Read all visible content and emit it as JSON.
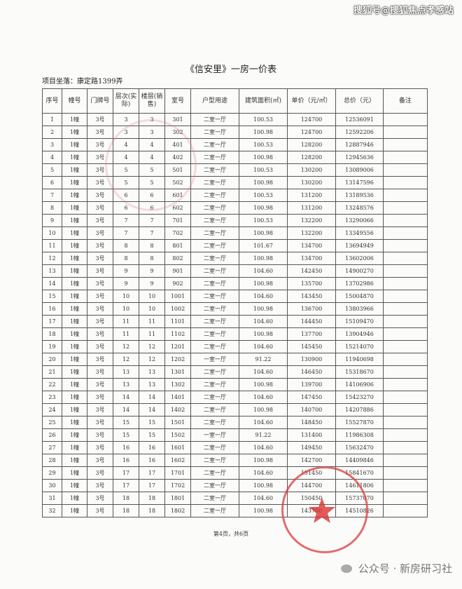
{
  "watermark_top": "搜狐号@搜狐焦点孝感站",
  "title": "《信安里》一房一价表",
  "location": "项目坐落：康定路1399弄",
  "headers": [
    "序号",
    "幢号",
    "门牌号",
    "层次(实际)",
    "楼层(销售)",
    "室号",
    "户型用途",
    "建筑面积(㎡)",
    "单价（元/㎡）",
    "总价（元）",
    "备注"
  ],
  "rows": [
    [
      "1",
      "1幢",
      "3号",
      "3",
      "3",
      "301",
      "二室一厅",
      "100.53",
      "124700",
      "12536091",
      ""
    ],
    [
      "2",
      "1幢",
      "3号",
      "3",
      "3",
      "302",
      "二室一厅",
      "100.98",
      "124700",
      "12592206",
      ""
    ],
    [
      "3",
      "1幢",
      "3号",
      "4",
      "4",
      "401",
      "二室一厅",
      "100.53",
      "128200",
      "12887946",
      ""
    ],
    [
      "4",
      "1幢",
      "3号",
      "4",
      "4",
      "402",
      "二室一厅",
      "100.98",
      "128200",
      "12945636",
      ""
    ],
    [
      "5",
      "1幢",
      "3号",
      "5",
      "5",
      "501",
      "二室一厅",
      "100.53",
      "130200",
      "13089006",
      ""
    ],
    [
      "6",
      "1幢",
      "3号",
      "5",
      "5",
      "502",
      "二室一厅",
      "100.98",
      "130200",
      "13147596",
      ""
    ],
    [
      "7",
      "1幢",
      "3号",
      "6",
      "6",
      "601",
      "二室一厅",
      "100.53",
      "131200",
      "13189536",
      ""
    ],
    [
      "8",
      "1幢",
      "3号",
      "6",
      "6",
      "602",
      "二室一厅",
      "100.98",
      "131200",
      "13248576",
      ""
    ],
    [
      "9",
      "1幢",
      "3号",
      "7",
      "7",
      "701",
      "二室一厅",
      "100.53",
      "132200",
      "13290066",
      ""
    ],
    [
      "10",
      "1幢",
      "3号",
      "7",
      "7",
      "702",
      "二室一厅",
      "100.98",
      "132200",
      "13349556",
      ""
    ],
    [
      "11",
      "1幢",
      "3号",
      "8",
      "8",
      "801",
      "二室一厅",
      "101.67",
      "134700",
      "13694949",
      ""
    ],
    [
      "12",
      "1幢",
      "3号",
      "8",
      "8",
      "802",
      "二室一厅",
      "100.98",
      "134700",
      "13602006",
      ""
    ],
    [
      "13",
      "1幢",
      "3号",
      "9",
      "9",
      "901",
      "二室一厅",
      "104.60",
      "142450",
      "14900270",
      ""
    ],
    [
      "14",
      "1幢",
      "3号",
      "9",
      "9",
      "902",
      "二室一厅",
      "100.98",
      "135700",
      "13702986",
      ""
    ],
    [
      "15",
      "1幢",
      "3号",
      "10",
      "10",
      "1001",
      "二室一厅",
      "104.60",
      "143450",
      "15004870",
      ""
    ],
    [
      "16",
      "1幢",
      "3号",
      "10",
      "10",
      "1002",
      "二室一厅",
      "100.98",
      "136700",
      "13803966",
      ""
    ],
    [
      "17",
      "1幢",
      "3号",
      "11",
      "11",
      "1101",
      "二室一厅",
      "104.60",
      "144450",
      "15109470",
      ""
    ],
    [
      "18",
      "1幢",
      "3号",
      "11",
      "11",
      "1102",
      "二室一厅",
      "100.98",
      "137700",
      "13904946",
      ""
    ],
    [
      "19",
      "1幢",
      "3号",
      "12",
      "12",
      "1201",
      "二室一厅",
      "104.60",
      "145450",
      "15214070",
      ""
    ],
    [
      "20",
      "1幢",
      "3号",
      "12",
      "12",
      "1202",
      "一室一厅",
      "91.22",
      "130900",
      "11940698",
      ""
    ],
    [
      "21",
      "1幢",
      "3号",
      "13",
      "13",
      "1301",
      "二室一厅",
      "104.60",
      "146450",
      "15318670",
      ""
    ],
    [
      "22",
      "1幢",
      "3号",
      "13",
      "13",
      "1302",
      "二室一厅",
      "100.98",
      "139700",
      "14106906",
      ""
    ],
    [
      "23",
      "1幢",
      "3号",
      "14",
      "14",
      "1401",
      "二室一厅",
      "104.60",
      "147450",
      "15423270",
      ""
    ],
    [
      "24",
      "1幢",
      "3号",
      "14",
      "14",
      "1402",
      "二室一厅",
      "100.98",
      "140700",
      "14207886",
      ""
    ],
    [
      "25",
      "1幢",
      "3号",
      "15",
      "15",
      "1501",
      "二室一厅",
      "104.60",
      "148450",
      "15527870",
      ""
    ],
    [
      "26",
      "1幢",
      "3号",
      "15",
      "15",
      "1502",
      "一室一厅",
      "91.22",
      "131400",
      "11986308",
      ""
    ],
    [
      "27",
      "1幢",
      "3号",
      "16",
      "16",
      "1601",
      "二室一厅",
      "104.60",
      "149450",
      "15632470",
      ""
    ],
    [
      "28",
      "1幢",
      "3号",
      "16",
      "16",
      "1602",
      "二室一厅",
      "100.98",
      "142700",
      "14409846",
      ""
    ],
    [
      "29",
      "1幢",
      "3号",
      "17",
      "17",
      "1701",
      "二室一厅",
      "104.60",
      "151450",
      "15841670",
      ""
    ],
    [
      "30",
      "1幢",
      "3号",
      "17",
      "17",
      "1702",
      "二室一厅",
      "100.98",
      "144700",
      "14611806",
      ""
    ],
    [
      "31",
      "1幢",
      "3号",
      "18",
      "18",
      "1801",
      "二室一厅",
      "104.60",
      "150450",
      "15737070",
      ""
    ],
    [
      "32",
      "1幢",
      "3号",
      "18",
      "18",
      "1802",
      "二室一厅",
      "100.98",
      "143700",
      "14510826",
      ""
    ]
  ],
  "footer": "第4页，共6页",
  "watermark_bottom": {
    "icon": "wechat-icon",
    "text": "公众号 · 新房研习社"
  },
  "colors": {
    "stamp": "#dc3c3c"
  }
}
